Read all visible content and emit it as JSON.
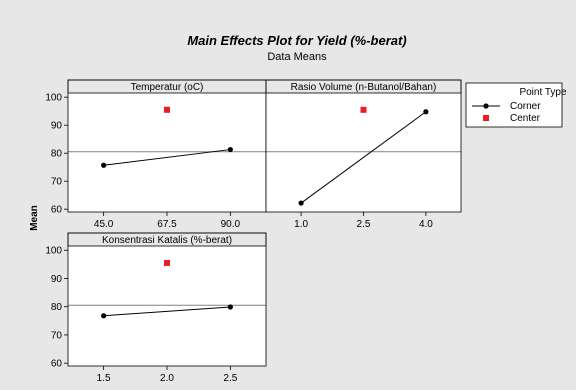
{
  "chart_data": {
    "type": "line",
    "title": "Main Effects Plot for Yield (%-berat)",
    "subtitle": "Data Means",
    "ylabel": "Mean",
    "ylim": [
      59,
      101.5
    ],
    "yticks": [
      60,
      70,
      80,
      90,
      100
    ],
    "reference_line": 80.5,
    "legend": {
      "title": "Point Type",
      "entries": [
        "Corner",
        "Center"
      ],
      "placement": "right",
      "colors": {
        "Corner": "#000000",
        "Center": "#ed1c24"
      }
    },
    "panels": [
      {
        "title": "Temperatur (oC)",
        "tick_labels": [
          "45.0",
          "67.5",
          "90.0"
        ],
        "corner": {
          "x": [
            "45.0",
            "90.0"
          ],
          "y": [
            75.7,
            81.3
          ]
        },
        "center": {
          "x": "67.5",
          "y": 95.5
        }
      },
      {
        "title": "Rasio Volume (n-Butanol/Bahan)",
        "tick_labels": [
          "1.0",
          "2.5",
          "4.0"
        ],
        "corner": {
          "x": [
            "1.0",
            "4.0"
          ],
          "y": [
            62.2,
            94.8
          ]
        },
        "center": {
          "x": "2.5",
          "y": 95.5
        }
      },
      {
        "title": "Konsentrasi Katalis (%-berat)",
        "tick_labels": [
          "1.5",
          "2.0",
          "2.5"
        ],
        "corner": {
          "x": [
            "1.5",
            "2.5"
          ],
          "y": [
            76.8,
            79.9
          ]
        },
        "center": {
          "x": "2.0",
          "y": 95.5
        }
      }
    ]
  }
}
